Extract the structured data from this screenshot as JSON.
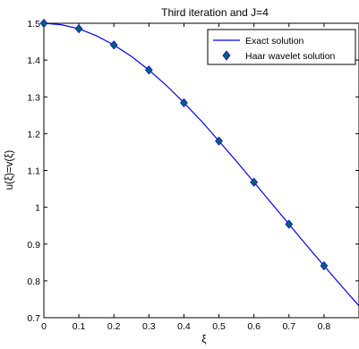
{
  "chart_data": {
    "type": "line",
    "title": "Third iteration and J=4",
    "xlabel": "ξ",
    "ylabel": "u(ξ)=v(ξ)",
    "xlim": [
      0,
      0.9
    ],
    "ylim": [
      0.7,
      1.5
    ],
    "xticks": [
      0,
      0.1,
      0.2,
      0.3,
      0.4,
      0.5,
      0.6,
      0.7,
      0.8
    ],
    "xtick_labels": [
      "0",
      "0.1",
      "0.2",
      "0.3",
      "0.4",
      "0.5",
      "0.6",
      "0.7",
      "0.8"
    ],
    "yticks": [
      0.7,
      0.8,
      0.9,
      1.0,
      1.1,
      1.2,
      1.3,
      1.4,
      1.5
    ],
    "ytick_labels": [
      "0.7",
      "0.8",
      "0.9",
      "1",
      "1.1",
      "1.2",
      "1.3",
      "1.4",
      "1.5"
    ],
    "grid": false,
    "legend_position": "top-right",
    "series": [
      {
        "name": "Exact solution",
        "style": "line",
        "color": "#0000ff",
        "x": [
          0,
          0.05,
          0.1,
          0.15,
          0.2,
          0.25,
          0.3,
          0.35,
          0.4,
          0.45,
          0.5,
          0.55,
          0.6,
          0.65,
          0.7,
          0.75,
          0.8,
          0.85,
          0.9
        ],
        "y": [
          1.5,
          1.496,
          1.485,
          1.466,
          1.441,
          1.41,
          1.373,
          1.331,
          1.284,
          1.234,
          1.18,
          1.125,
          1.068,
          1.011,
          0.954,
          0.897,
          0.841,
          0.786,
          0.732
        ]
      },
      {
        "name": "Haar wavelet solution",
        "style": "marker",
        "marker": "diamond",
        "color": "#006666",
        "edge_color": "#0000ff",
        "x": [
          0,
          0.1,
          0.2,
          0.3,
          0.4,
          0.5,
          0.6,
          0.7,
          0.8
        ],
        "y": [
          1.5,
          1.485,
          1.441,
          1.373,
          1.284,
          1.18,
          1.068,
          0.954,
          0.841
        ]
      }
    ]
  }
}
